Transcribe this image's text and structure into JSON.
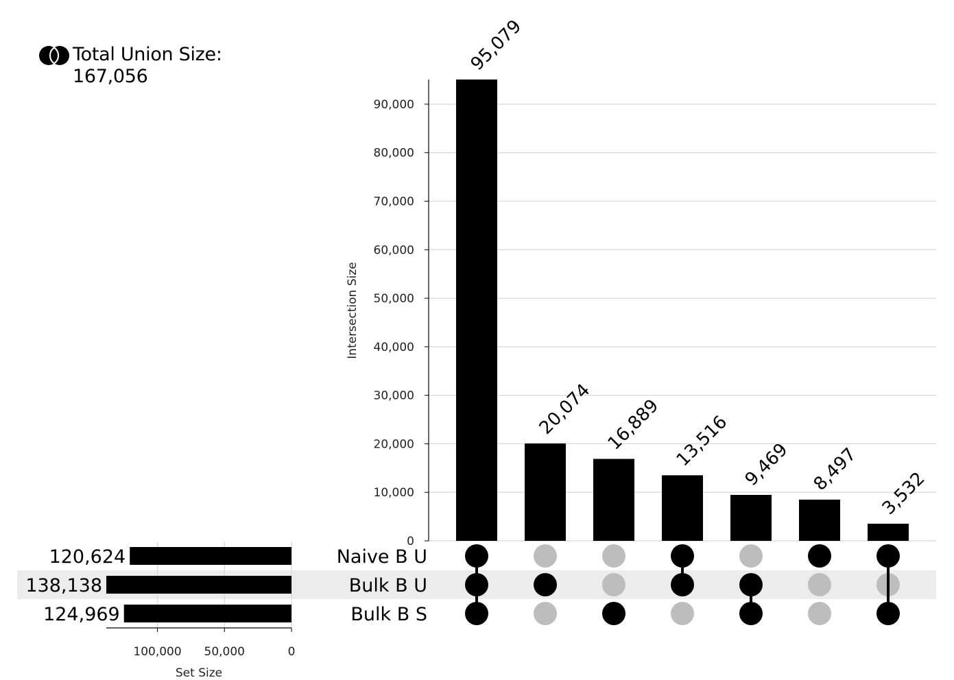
{
  "union": {
    "label": "Total Union Size:",
    "value": "167,056"
  },
  "chart_data": {
    "type": "bar",
    "subtype": "upset",
    "ylabel": "Intersection Size",
    "ylim": [
      0,
      95079
    ],
    "yticks": [
      0,
      10000,
      20000,
      30000,
      40000,
      50000,
      60000,
      70000,
      80000,
      90000
    ],
    "grid": true,
    "sets": [
      {
        "name": "Naive B U",
        "size": 120624,
        "size_label": "120,624"
      },
      {
        "name": "Bulk B U",
        "size": 138138,
        "size_label": "138,138"
      },
      {
        "name": "Bulk B S",
        "size": 124969,
        "size_label": "124,969"
      }
    ],
    "set_size_axis": {
      "label": "Set Size",
      "ticks": [
        100000,
        50000,
        0
      ],
      "tick_labels": [
        "100,000",
        "50,000",
        "0"
      ],
      "max": 138138
    },
    "intersections": [
      {
        "members": [
          0,
          1,
          2
        ],
        "value": 95079,
        "label": "95,079"
      },
      {
        "members": [
          1
        ],
        "value": 20074,
        "label": "20,074"
      },
      {
        "members": [
          2
        ],
        "value": 16889,
        "label": "16,889"
      },
      {
        "members": [
          0,
          1
        ],
        "value": 13516,
        "label": "13,516"
      },
      {
        "members": [
          1,
          2
        ],
        "value": 9469,
        "label": "9,469"
      },
      {
        "members": [
          0
        ],
        "value": 8497,
        "label": "8,497"
      },
      {
        "members": [
          0,
          2
        ],
        "value": 3532,
        "label": "3,532"
      }
    ],
    "colors": {
      "bar": "#000000",
      "dot_active": "#000000",
      "dot_inactive": "#bdbdbd",
      "grid": "#dddddd",
      "row_highlight": "#ececec"
    }
  }
}
